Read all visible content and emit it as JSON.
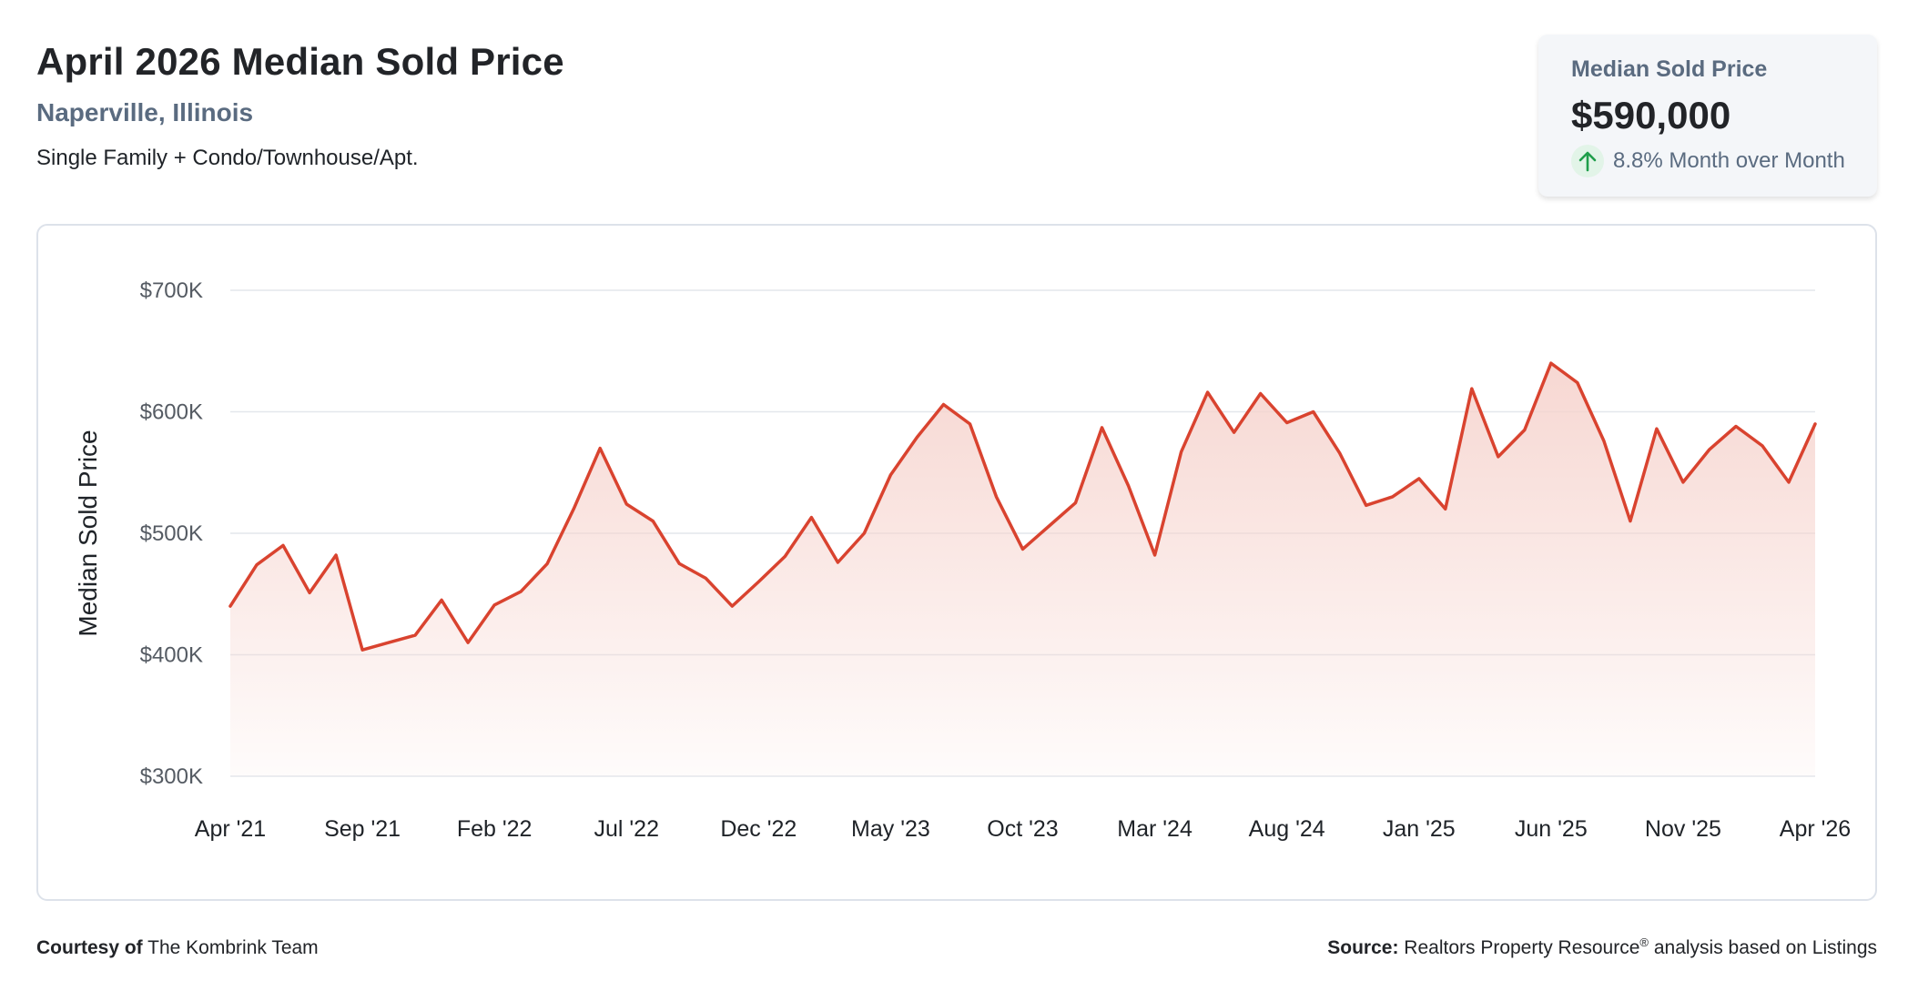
{
  "header": {
    "title": "April 2026 Median Sold Price",
    "location": "Naperville, Illinois",
    "property_types": "Single Family + Condo/Townhouse/Apt."
  },
  "summary": {
    "label": "Median Sold Price",
    "value": "$590,000",
    "change": "8.8% Month over Month",
    "change_direction": "up",
    "change_color": "#1f9e4b",
    "icon": "arrow-up-icon"
  },
  "footer": {
    "courtesy_label": "Courtesy of",
    "courtesy_name": "The Kombrink Team",
    "source_label": "Source:",
    "source_name": "Realtors Property Resource",
    "source_mark": "®",
    "source_suffix": "analysis based on Listings"
  },
  "chart_data": {
    "type": "area",
    "ylabel": "Median Sold Price",
    "ylim": [
      300000,
      700000
    ],
    "y_ticks": [
      700000,
      600000,
      500000,
      400000,
      300000
    ],
    "y_tick_labels": [
      "$700K",
      "$600K",
      "$500K",
      "$400K",
      "$300K"
    ],
    "x_tick_labels": [
      "Apr '21",
      "Sep '21",
      "Feb '22",
      "Jul '22",
      "Dec '22",
      "May '23",
      "Oct '23",
      "Mar '24",
      "Aug '24",
      "Jan '25",
      "Jun '25",
      "Nov '25",
      "Apr '26"
    ],
    "x_tick_every": 5,
    "line_color": "#d9432f",
    "fill_color": "#f6d3cd",
    "grid": true,
    "series": [
      {
        "x": [
          "Apr 2021",
          "May 2021",
          "Jun 2021",
          "Jul 2021",
          "Aug 2021",
          "Sep 2021",
          "Oct 2021",
          "Nov 2021",
          "Dec 2021",
          "Jan 2022",
          "Feb 2022",
          "Mar 2022",
          "Apr 2022",
          "May 2022",
          "Jun 2022",
          "Jul 2022",
          "Aug 2022",
          "Sep 2022",
          "Oct 2022",
          "Nov 2022",
          "Dec 2022",
          "Jan 2023",
          "Feb 2023",
          "Mar 2023",
          "Apr 2023",
          "May 2023",
          "Jun 2023",
          "Jul 2023",
          "Aug 2023",
          "Sep 2023",
          "Oct 2023",
          "Nov 2023",
          "Dec 2023",
          "Jan 2024",
          "Feb 2024",
          "Mar 2024",
          "Apr 2024",
          "May 2024",
          "Jun 2024",
          "Jul 2024",
          "Aug 2024",
          "Sep 2024",
          "Oct 2024",
          "Nov 2024",
          "Dec 2024",
          "Jan 2025",
          "Feb 2025",
          "Mar 2025",
          "Apr 2025",
          "May 2025",
          "Jun 2025",
          "Jul 2025",
          "Aug 2025",
          "Sep 2025",
          "Oct 2025",
          "Nov 2025",
          "Dec 2025",
          "Jan 2026",
          "Feb 2026",
          "Mar 2026",
          "Apr 2026"
        ],
        "values": [
          440000,
          474000,
          490000,
          451000,
          482000,
          404000,
          410000,
          416000,
          445000,
          410000,
          441000,
          452000,
          475000,
          520000,
          570000,
          524000,
          510000,
          475000,
          463000,
          440000,
          460000,
          481000,
          513000,
          476000,
          500000,
          548000,
          579000,
          606000,
          590000,
          530000,
          487000,
          506000,
          525000,
          587000,
          539000,
          482000,
          567000,
          616000,
          583000,
          615000,
          591000,
          600000,
          566000,
          523000,
          530000,
          545000,
          520000,
          619000,
          563000,
          585000,
          640000,
          624000,
          576000,
          510000,
          586000,
          542000,
          569000,
          588000,
          572000,
          542000,
          590000
        ]
      }
    ]
  }
}
